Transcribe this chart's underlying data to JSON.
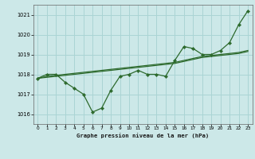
{
  "title": "Graphe pression niveau de la mer (hPa)",
  "bg_color": "#cce8e8",
  "grid_color": "#aad4d4",
  "line_color": "#2d6a2d",
  "ylim": [
    1015.5,
    1021.5
  ],
  "yticks": [
    1016,
    1017,
    1018,
    1019,
    1020,
    1021
  ],
  "xlim": [
    -0.5,
    23.5
  ],
  "xticks": [
    0,
    1,
    2,
    3,
    4,
    5,
    6,
    7,
    8,
    9,
    10,
    11,
    12,
    13,
    14,
    15,
    16,
    17,
    18,
    19,
    20,
    21,
    22,
    23
  ],
  "series1": [
    1017.8,
    1018.0,
    1018.0,
    1017.6,
    1017.3,
    1017.0,
    1016.1,
    1016.3,
    1017.2,
    1017.9,
    1018.0,
    1018.2,
    1018.0,
    1018.0,
    1017.9,
    1018.7,
    1019.4,
    1019.3,
    1019.0,
    1019.0,
    1019.2,
    1019.6,
    1020.5,
    1021.2
  ],
  "series2": [
    1017.8,
    1017.9,
    1017.95,
    1018.0,
    1018.05,
    1018.1,
    1018.15,
    1018.2,
    1018.25,
    1018.3,
    1018.35,
    1018.4,
    1018.45,
    1018.5,
    1018.55,
    1018.6,
    1018.7,
    1018.8,
    1018.9,
    1018.95,
    1019.0,
    1019.05,
    1019.1,
    1019.2
  ],
  "series3": [
    1017.8,
    1017.85,
    1017.9,
    1017.95,
    1018.0,
    1018.05,
    1018.1,
    1018.15,
    1018.2,
    1018.25,
    1018.3,
    1018.35,
    1018.4,
    1018.45,
    1018.5,
    1018.55,
    1018.65,
    1018.75,
    1018.85,
    1018.9,
    1018.95,
    1019.0,
    1019.05,
    1019.15
  ]
}
